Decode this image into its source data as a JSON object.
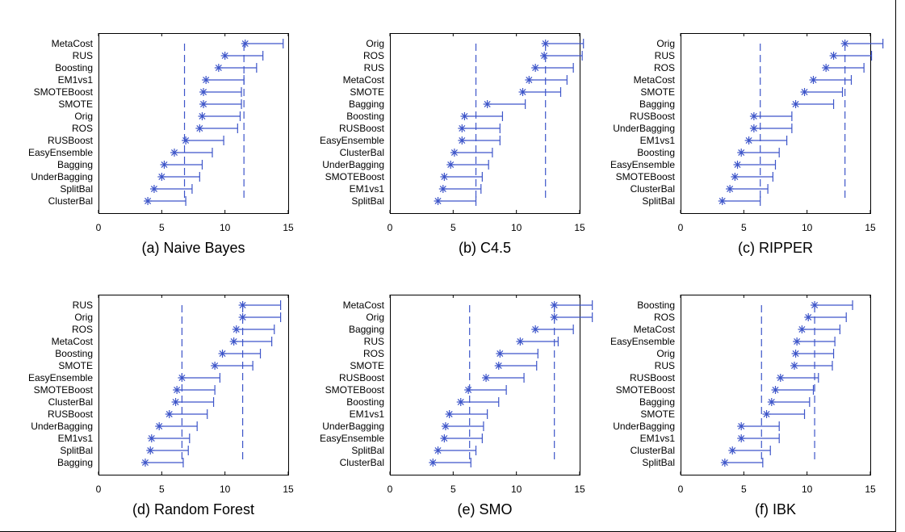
{
  "chart_data": [
    {
      "type": "scatter",
      "title": "(a) Naive Bayes",
      "xlim": [
        0,
        15
      ],
      "xticks": [
        0,
        5,
        10,
        15
      ],
      "critical_lines": [
        6.8,
        11.5
      ],
      "grid": false,
      "categories": [
        "MetaCost",
        "RUS",
        "Boosting",
        "EM1vs1",
        "SMOTEBoost",
        "SMOTE",
        "Orig",
        "ROS",
        "RUSBoost",
        "EasyEnsemble",
        "Bagging",
        "UnderBagging",
        "SplitBal",
        "ClusterBal"
      ],
      "values": [
        11.6,
        10.0,
        9.5,
        8.5,
        8.3,
        8.3,
        8.2,
        8.0,
        6.9,
        6.0,
        5.2,
        5.0,
        4.4,
        3.9
      ],
      "interval_ends": [
        14.6,
        13.0,
        12.5,
        11.5,
        11.3,
        11.3,
        11.2,
        11.0,
        9.9,
        9.0,
        8.2,
        8.0,
        7.4,
        6.9
      ]
    },
    {
      "type": "scatter",
      "title": "(b) C4.5",
      "xlim": [
        0,
        15
      ],
      "xticks": [
        0,
        5,
        10,
        15
      ],
      "critical_lines": [
        6.8,
        12.3
      ],
      "grid": false,
      "categories": [
        "Orig",
        "ROS",
        "RUS",
        "MetaCost",
        "SMOTE",
        "Bagging",
        "Boosting",
        "RUSBoost",
        "EasyEnsemble",
        "ClusterBal",
        "UnderBagging",
        "SMOTEBoost",
        "EM1vs1",
        "SplitBal"
      ],
      "values": [
        12.3,
        12.2,
        11.5,
        11.0,
        10.5,
        7.7,
        5.9,
        5.7,
        5.7,
        5.1,
        4.8,
        4.3,
        4.2,
        3.8
      ],
      "interval_ends": [
        15.3,
        15.2,
        14.5,
        14.0,
        13.5,
        10.7,
        8.9,
        8.7,
        8.7,
        8.1,
        7.8,
        7.3,
        7.2,
        6.8
      ]
    },
    {
      "type": "scatter",
      "title": "(c) RIPPER",
      "xlim": [
        0,
        15
      ],
      "xticks": [
        0,
        5,
        10,
        15
      ],
      "critical_lines": [
        6.3,
        13.0
      ],
      "grid": false,
      "categories": [
        "Orig",
        "RUS",
        "ROS",
        "MetaCost",
        "SMOTE",
        "Bagging",
        "RUSBoost",
        "UnderBagging",
        "EM1vs1",
        "Boosting",
        "EasyEnsemble",
        "SMOTEBoost",
        "ClusterBal",
        "SplitBal"
      ],
      "values": [
        13.0,
        12.1,
        11.5,
        10.5,
        9.8,
        9.1,
        5.8,
        5.8,
        5.4,
        4.8,
        4.5,
        4.3,
        3.9,
        3.3
      ],
      "interval_ends": [
        16.0,
        15.1,
        14.5,
        13.5,
        12.8,
        12.1,
        8.8,
        8.8,
        8.4,
        7.8,
        7.5,
        7.3,
        6.9,
        6.3
      ]
    },
    {
      "type": "scatter",
      "title": "(d) Random Forest",
      "xlim": [
        0,
        15
      ],
      "xticks": [
        0,
        5,
        10,
        15
      ],
      "critical_lines": [
        6.6,
        11.4
      ],
      "grid": false,
      "categories": [
        "RUS",
        "Orig",
        "ROS",
        "MetaCost",
        "Boosting",
        "SMOTE",
        "EasyEnsemble",
        "SMOTEBoost",
        "ClusterBal",
        "RUSBoost",
        "UnderBagging",
        "EM1vs1",
        "SplitBal",
        "Bagging"
      ],
      "values": [
        11.4,
        11.4,
        10.9,
        10.7,
        9.8,
        9.2,
        6.6,
        6.2,
        6.1,
        5.6,
        4.8,
        4.2,
        4.1,
        3.7
      ],
      "interval_ends": [
        14.4,
        14.4,
        13.9,
        13.7,
        12.8,
        12.2,
        9.6,
        9.2,
        9.1,
        8.6,
        7.8,
        7.2,
        7.1,
        6.7
      ]
    },
    {
      "type": "scatter",
      "title": "(e) SMO",
      "xlim": [
        0,
        15
      ],
      "xticks": [
        0,
        5,
        10,
        15
      ],
      "critical_lines": [
        6.3,
        13.0
      ],
      "grid": false,
      "categories": [
        "MetaCost",
        "Orig",
        "Bagging",
        "RUS",
        "ROS",
        "SMOTE",
        "RUSBoost",
        "SMOTEBoost",
        "Boosting",
        "EM1vs1",
        "UnderBagging",
        "EasyEnsemble",
        "SplitBal",
        "ClusterBal"
      ],
      "values": [
        13.0,
        13.0,
        11.5,
        10.3,
        8.7,
        8.6,
        7.6,
        6.2,
        5.6,
        4.7,
        4.4,
        4.3,
        3.8,
        3.4
      ],
      "interval_ends": [
        16.0,
        16.0,
        14.5,
        13.3,
        11.7,
        11.6,
        10.6,
        9.2,
        8.6,
        7.7,
        7.4,
        7.3,
        6.8,
        6.4
      ]
    },
    {
      "type": "scatter",
      "title": "(f) IBK",
      "xlim": [
        0,
        15
      ],
      "xticks": [
        0,
        5,
        10,
        15
      ],
      "critical_lines": [
        6.4,
        10.6
      ],
      "grid": false,
      "categories": [
        "Boosting",
        "ROS",
        "MetaCost",
        "EasyEnsemble",
        "Orig",
        "RUS",
        "RUSBoost",
        "SMOTEBoost",
        "Bagging",
        "SMOTE",
        "UnderBagging",
        "EM1vs1",
        "ClusterBal",
        "SplitBal"
      ],
      "values": [
        10.6,
        10.1,
        9.6,
        9.2,
        9.1,
        9.0,
        7.9,
        7.5,
        7.2,
        6.8,
        4.8,
        4.8,
        4.1,
        3.5
      ],
      "interval_ends": [
        13.6,
        13.1,
        12.6,
        12.2,
        12.1,
        12.0,
        10.9,
        10.5,
        10.2,
        9.8,
        7.8,
        7.8,
        7.1,
        6.5
      ]
    }
  ]
}
